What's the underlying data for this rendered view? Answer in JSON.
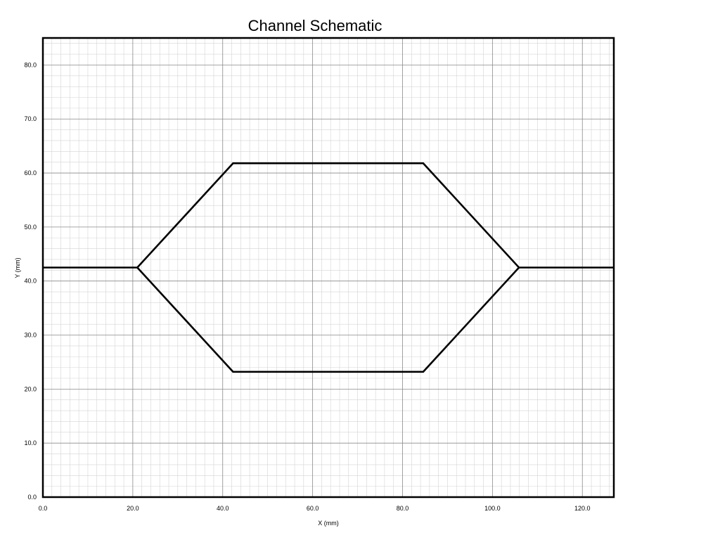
{
  "title": "Channel Schematic",
  "xlabel": "X (mm)",
  "ylabel": "Y (mm)",
  "chart_data": {
    "type": "line",
    "title": "Channel Schematic",
    "xlabel": "X (mm)",
    "ylabel": "Y (mm)",
    "xlim": [
      0,
      127
    ],
    "ylim": [
      0,
      85
    ],
    "grid": true,
    "x_ticks": [
      0,
      20,
      40,
      60,
      80,
      100,
      120
    ],
    "y_ticks": [
      0,
      10,
      20,
      30,
      40,
      50,
      60,
      70,
      80
    ],
    "x_tick_labels": [
      "0.0",
      "20.0",
      "40.0",
      "60.0",
      "80.0",
      "100.0",
      "120.0"
    ],
    "y_tick_labels": [
      "0.0",
      "10.0",
      "20.0",
      "30.0",
      "40.0",
      "50.0",
      "60.0",
      "70.0",
      "80.0"
    ],
    "series": [
      {
        "x": [
          0,
          21.0,
          42.3,
          84.6,
          105.9,
          127
        ],
        "y": [
          42.5,
          42.5,
          61.8,
          61.8,
          42.5,
          42.5
        ]
      },
      {
        "x": [
          21.0,
          42.3,
          84.6,
          105.9
        ],
        "y": [
          42.5,
          23.2,
          23.2,
          42.5
        ]
      }
    ]
  }
}
